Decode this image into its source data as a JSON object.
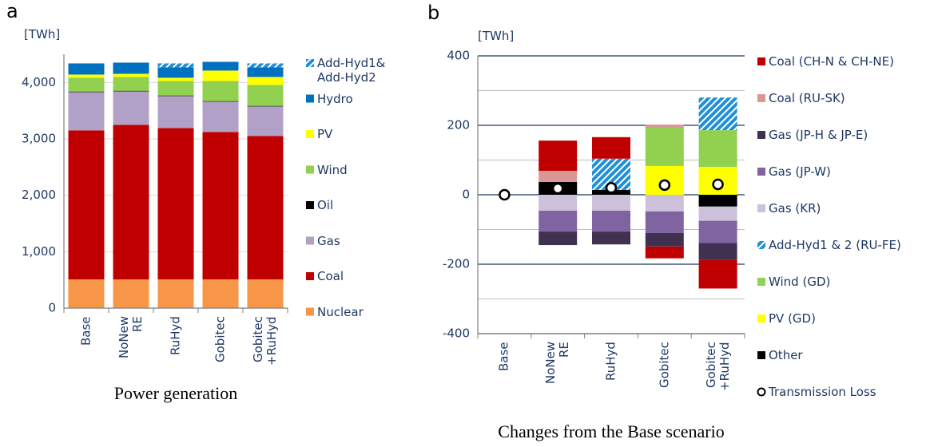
{
  "chart_data": [
    {
      "type": "bar",
      "stacked": true,
      "panel_label": "a",
      "unit": "[TWh]",
      "xlabel": "Power generation",
      "categories": [
        "Base",
        "NoNew RE",
        "RuHyd",
        "Gobitec",
        "Gobitec +RuHyd"
      ],
      "ylim": [
        0,
        4500
      ],
      "yticks": [
        0,
        {
          "value": 1000,
          "label": "1,000"
        },
        {
          "value": 2000,
          "label": "2,000"
        },
        {
          "value": 3000,
          "label": "3,000"
        },
        {
          "value": 4000,
          "label": "4,000"
        }
      ],
      "grid": true,
      "legend": "right",
      "series": [
        {
          "name": "Add-Hyd1& Add-Hyd2",
          "color": "#1f8fd6",
          "pattern": "hatch",
          "values": [
            0,
            0,
            71,
            0,
            71
          ]
        },
        {
          "name": "Hydro",
          "color": "#0070c0",
          "values": [
            198,
            198,
            183,
            155,
            169
          ]
        },
        {
          "name": "PV",
          "color": "#ffff00",
          "values": [
            56,
            56,
            57,
            184,
            142
          ]
        },
        {
          "name": "Wind",
          "color": "#92d050",
          "values": [
            245,
            245,
            258,
            357,
            371
          ]
        },
        {
          "name": "Oil",
          "color": "#000000",
          "values": [
            10,
            10,
            10,
            10,
            10
          ]
        },
        {
          "name": "Gas",
          "color": "#b2a1c7",
          "values": [
            678,
            593,
            566,
            537,
            523
          ]
        },
        {
          "name": "Coal",
          "color": "#c00000",
          "values": [
            2642,
            2741,
            2684,
            2614,
            2543
          ]
        },
        {
          "name": "Nuclear",
          "color": "#f79646",
          "values": [
            509,
            509,
            509,
            509,
            509
          ]
        }
      ]
    },
    {
      "type": "bar",
      "stacked": true,
      "panel_label": "b",
      "unit": "[TWh]",
      "xlabel": "Changes from the Base scenario",
      "categories": [
        "Base",
        "NoNew RE",
        "RuHyd",
        "Gobitec",
        "Gobitec +RuHyd"
      ],
      "ylim": [
        -400,
        400
      ],
      "yticks": [
        -400,
        -200,
        0,
        200,
        400
      ],
      "minor_grid": [
        -300,
        -100,
        100,
        300
      ],
      "grid": true,
      "legend": "right",
      "series": [
        {
          "name": "Coal (CH-N & CH-NE)",
          "color": "#c00000",
          "values": [
            0,
            87,
            62,
            -34,
            -83
          ]
        },
        {
          "name": "Coal (RU-SK)",
          "color": "#da9694",
          "values": [
            0,
            32,
            0,
            9,
            0
          ]
        },
        {
          "name": "Gas (JP-H & JP-E)",
          "color": "#403151",
          "values": [
            0,
            -39,
            -37,
            -39,
            -48
          ]
        },
        {
          "name": "Gas (JP-W)",
          "color": "#8064a2",
          "values": [
            0,
            -60,
            -60,
            -62,
            -64
          ]
        },
        {
          "name": "Gas (KR)",
          "color": "#ccc0da",
          "values": [
            0,
            -46,
            -46,
            -48,
            -41
          ]
        },
        {
          "name": "Add-Hyd1 & 2 (RU-FE)",
          "color": "#1f8fd6",
          "pattern": "hatch",
          "values": [
            0,
            0,
            90,
            0,
            94
          ]
        },
        {
          "name": "Wind (GD)",
          "color": "#92d050",
          "values": [
            0,
            0,
            0,
            110,
            106
          ]
        },
        {
          "name": "PV (GD)",
          "color": "#ffff00",
          "values": [
            0,
            0,
            0,
            83,
            80
          ]
        },
        {
          "name": "Other",
          "color": "#000000",
          "values": [
            0,
            37,
            14,
            0,
            -34
          ]
        },
        {
          "name": "Transmission Loss",
          "color": "#000000",
          "marker": "circle",
          "values": [
            0,
            18,
            20,
            28,
            30
          ]
        }
      ]
    }
  ]
}
